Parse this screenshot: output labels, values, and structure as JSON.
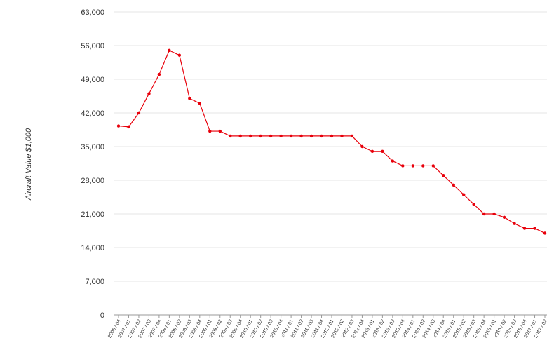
{
  "chart_data": {
    "type": "line",
    "title": "",
    "xlabel": "",
    "ylabel": "Aircraft Value $1,000",
    "ylim": [
      0,
      63000
    ],
    "yticks": [
      "0",
      "7,000",
      "14,000",
      "21,000",
      "28,000",
      "35,000",
      "42,000",
      "49,000",
      "56,000",
      "63,000"
    ],
    "grid": true,
    "legend": "none",
    "line_color": "#e8000b",
    "categories": [
      "2006 / 04",
      "2007 / 01",
      "2007 / 02",
      "2007 / 03",
      "2007 / 04",
      "2008 / 01",
      "2008 / 02",
      "2008 / 03",
      "2008 / 04",
      "2009 / 01",
      "2009 / 02",
      "2009 / 03",
      "2009 / 04",
      "2010 / 01",
      "2010 / 02",
      "2010 / 03",
      "2010 / 04",
      "2011 / 01",
      "2011 / 02",
      "2011 / 03",
      "2011 / 04",
      "2012 / 01",
      "2012 / 02",
      "2012 / 03",
      "2012 / 04",
      "2013 / 01",
      "2013 / 02",
      "2013 / 03",
      "2013 / 04",
      "2014 / 01",
      "2014 / 02",
      "2014 / 03",
      "2014 / 04",
      "2015 / 01",
      "2015 / 02",
      "2015 / 03",
      "2015 / 04",
      "2016 / 01",
      "2016 / 02",
      "2016 / 03",
      "2016 / 04",
      "2017 / 01",
      "2017 / 02"
    ],
    "series": [
      {
        "values": [
          39300,
          39100,
          42000,
          46000,
          50000,
          55000,
          54000,
          45000,
          44000,
          38200,
          38200,
          37200,
          37200,
          37200,
          37200,
          37200,
          37200,
          37200,
          37200,
          37200,
          37200,
          37200,
          37200,
          37200,
          35000,
          34000,
          34000,
          32000,
          31000,
          31000,
          31000,
          31000,
          29000,
          27000,
          25000,
          23000,
          21000,
          21000,
          20300,
          19000,
          18000,
          18000,
          17000
        ]
      }
    ]
  }
}
